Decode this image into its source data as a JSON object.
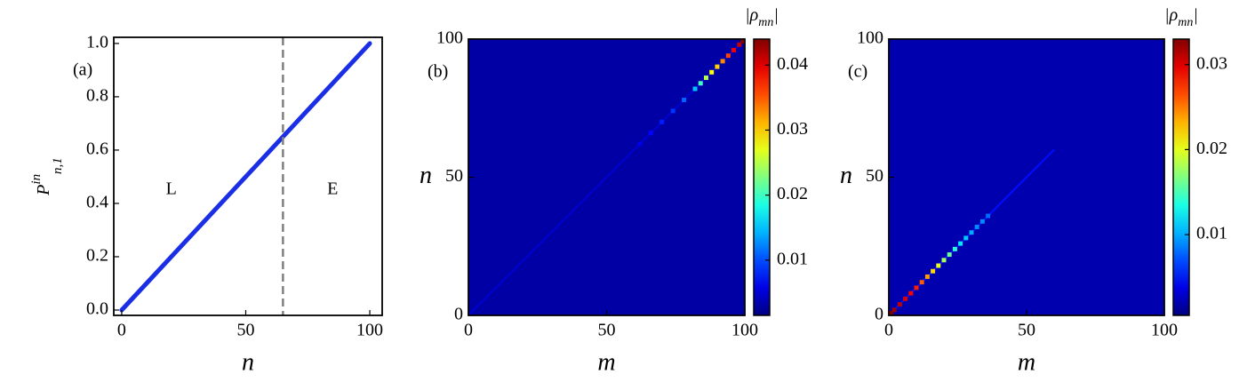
{
  "chart_data": [
    {
      "type": "line",
      "panel_label": "(a)",
      "region_labels": [
        "L",
        "E"
      ],
      "xlabel": "n",
      "ylabel": {
        "base": "P",
        "sup": "in",
        "sub": "n,1"
      },
      "x": [
        0,
        10,
        20,
        30,
        40,
        50,
        60,
        70,
        80,
        90,
        100
      ],
      "values": [
        0,
        0.1,
        0.2,
        0.3,
        0.4,
        0.5,
        0.6,
        0.7,
        0.8,
        0.9,
        1.0
      ],
      "color": "#1a2ee6",
      "vline": 65,
      "vline_color": "#808080",
      "xlim": [
        -3.2,
        105
      ],
      "ylim": [
        -0.02,
        1.023
      ],
      "xticks": [
        0,
        50,
        100
      ],
      "yticks": [
        {
          "value": 0,
          "label": "0.0"
        },
        0.2,
        0.4,
        0.6,
        0.8,
        {
          "value": 1,
          "label": "1.0"
        }
      ]
    },
    {
      "type": "heatmap",
      "panel_label": "(b)",
      "xlabel": "m",
      "ylabel": "n",
      "colorbar_label": {
        "open": "|ρ",
        "sub": "mn",
        "close": "|"
      },
      "background": 0.003,
      "lines": [
        {
          "x": [
            0,
            100
          ],
          "y": [
            0,
            100
          ],
          "value": 0.005
        }
      ],
      "x": [
        62,
        66,
        70,
        74,
        78,
        82,
        84,
        86,
        88,
        90,
        92,
        94,
        96,
        98,
        100
      ],
      "y": [
        62,
        66,
        70,
        74,
        78,
        82,
        84,
        86,
        88,
        90,
        92,
        94,
        96,
        98,
        100
      ],
      "values": [
        0.006,
        0.007,
        0.008,
        0.009,
        0.011,
        0.015,
        0.02,
        0.025,
        0.028,
        0.03,
        0.033,
        0.036,
        0.039,
        0.041,
        0.044
      ],
      "xlim": [
        0,
        100
      ],
      "ylim": [
        0,
        100
      ],
      "xticks": [
        0,
        50,
        100
      ],
      "yticks": [
        0,
        50,
        100
      ],
      "zlim": [
        0.0015,
        0.044
      ],
      "zticks": [
        0.01,
        0.02,
        0.03,
        0.04
      ]
    },
    {
      "type": "heatmap",
      "panel_label": "(c)",
      "xlabel": "m",
      "ylabel": "n",
      "colorbar_label": {
        "open": "|ρ",
        "sub": "mn",
        "close": "|"
      },
      "background": 0.002,
      "lines": [
        {
          "x": [
            0,
            60
          ],
          "y": [
            0,
            60
          ],
          "value": 0.005
        }
      ],
      "x": [
        0,
        2,
        4,
        6,
        8,
        10,
        12,
        14,
        16,
        18,
        20,
        22,
        24,
        26,
        28,
        30,
        32,
        34,
        36
      ],
      "y": [
        0,
        2,
        4,
        6,
        8,
        10,
        12,
        14,
        16,
        18,
        20,
        22,
        24,
        26,
        28,
        30,
        32,
        34,
        36
      ],
      "values": [
        0.033,
        0.032,
        0.031,
        0.03,
        0.029,
        0.028,
        0.026,
        0.024,
        0.022,
        0.02,
        0.018,
        0.016,
        0.014,
        0.012,
        0.011,
        0.01,
        0.009,
        0.009,
        0.008
      ],
      "xlim": [
        0,
        100
      ],
      "ylim": [
        0,
        100
      ],
      "xticks": [
        0,
        50,
        100
      ],
      "yticks": [
        0,
        50,
        100
      ],
      "zlim": [
        0.0005,
        0.033
      ],
      "zticks": [
        0.01,
        0.02,
        0.03
      ]
    }
  ]
}
